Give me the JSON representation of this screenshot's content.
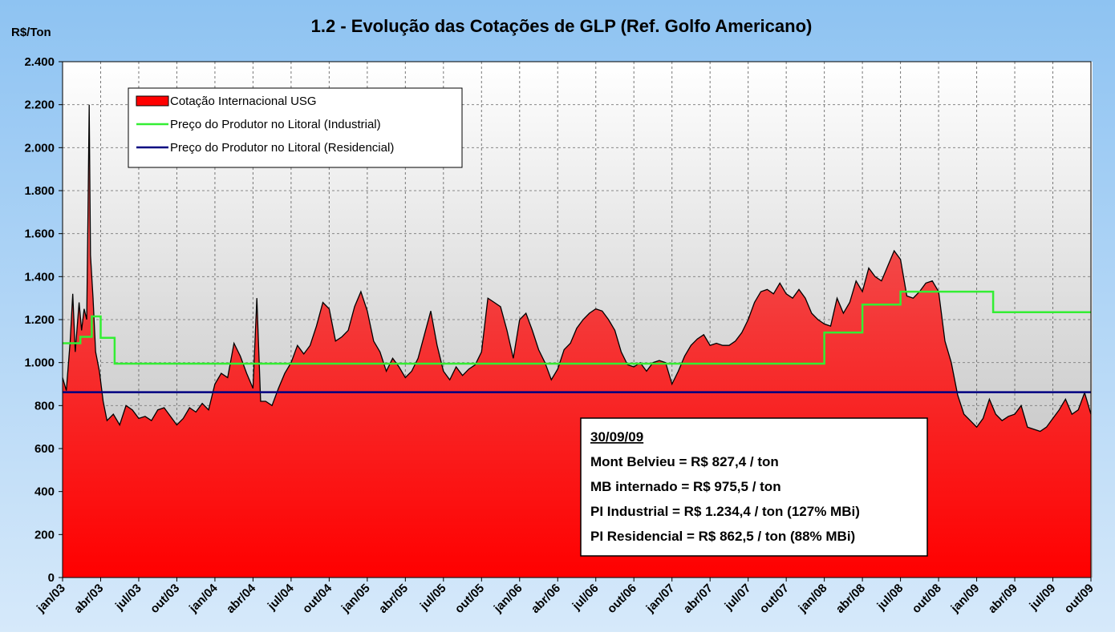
{
  "chart_data": {
    "type": "area",
    "title": "1.2 - Evolução das Cotações de GLP (Ref. Golfo Americano)",
    "y_label": "R$/Ton",
    "xlim": [
      0,
      81
    ],
    "ylim": [
      0,
      2400
    ],
    "xticks": [
      {
        "value": 0,
        "label": "jan/03"
      },
      {
        "value": 3,
        "label": "abr/03"
      },
      {
        "value": 6,
        "label": "jul/03"
      },
      {
        "value": 9,
        "label": "out/03"
      },
      {
        "value": 12,
        "label": "jan/04"
      },
      {
        "value": 15,
        "label": "abr/04"
      },
      {
        "value": 18,
        "label": "jul/04"
      },
      {
        "value": 21,
        "label": "out/04"
      },
      {
        "value": 24,
        "label": "jan/05"
      },
      {
        "value": 27,
        "label": "abr/05"
      },
      {
        "value": 30,
        "label": "jul/05"
      },
      {
        "value": 33,
        "label": "out/05"
      },
      {
        "value": 36,
        "label": "jan/06"
      },
      {
        "value": 39,
        "label": "abr/06"
      },
      {
        "value": 42,
        "label": "jul/06"
      },
      {
        "value": 45,
        "label": "out/06"
      },
      {
        "value": 48,
        "label": "jan/07"
      },
      {
        "value": 51,
        "label": "abr/07"
      },
      {
        "value": 54,
        "label": "jul/07"
      },
      {
        "value": 57,
        "label": "out/07"
      },
      {
        "value": 60,
        "label": "jan/08"
      },
      {
        "value": 63,
        "label": "abr/08"
      },
      {
        "value": 66,
        "label": "jul/08"
      },
      {
        "value": 69,
        "label": "out/08"
      },
      {
        "value": 72,
        "label": "jan/09"
      },
      {
        "value": 75,
        "label": "abr/09"
      },
      {
        "value": 78,
        "label": "jul/09"
      },
      {
        "value": 81,
        "label": "out/09"
      }
    ],
    "yticks": [
      0,
      200,
      400,
      600,
      800,
      {
        "value": 1000,
        "label": "1.000"
      },
      {
        "value": 1200,
        "label": "1.200"
      },
      {
        "value": 1400,
        "label": "1.400"
      },
      {
        "value": 1600,
        "label": "1.600"
      },
      {
        "value": 1800,
        "label": "1.800"
      },
      {
        "value": 2000,
        "label": "2.000"
      },
      {
        "value": 2200,
        "label": "2.200"
      },
      {
        "value": 2400,
        "label": "2.400"
      }
    ],
    "grid": true,
    "legend": "upper left",
    "series": [
      {
        "name": "Cotação Internacional USG",
        "color": "#ff0000",
        "kind": "area",
        "x": [
          0,
          0.3,
          0.6,
          0.8,
          1.0,
          1.3,
          1.5,
          1.7,
          1.9,
          2.0,
          2.1,
          2.2,
          2.4,
          2.6,
          2.9,
          3.2,
          3.5,
          4.0,
          4.5,
          5,
          5.5,
          6,
          6.5,
          7,
          7.5,
          8,
          8.5,
          9,
          9.5,
          10,
          10.5,
          11,
          11.5,
          12,
          12.5,
          13,
          13.5,
          14,
          14.5,
          15,
          15.3,
          15.6,
          16,
          16.5,
          17,
          17.5,
          18,
          18.5,
          19,
          19.5,
          20,
          20.5,
          21,
          21.5,
          22,
          22.5,
          23,
          23.5,
          24,
          24.5,
          25,
          25.5,
          26,
          26.5,
          27,
          27.5,
          28,
          28.5,
          29,
          29.5,
          30,
          30.5,
          31,
          31.5,
          32,
          32.5,
          33,
          33.5,
          34,
          34.5,
          35,
          35.5,
          36,
          36.5,
          37,
          37.5,
          38,
          38.5,
          39,
          39.5,
          40,
          40.5,
          41,
          41.5,
          42,
          42.5,
          43,
          43.5,
          44,
          44.5,
          45,
          45.5,
          46,
          46.5,
          47,
          47.5,
          48,
          48.5,
          49,
          49.5,
          50,
          50.5,
          51,
          51.5,
          52,
          52.5,
          53,
          53.5,
          54,
          54.5,
          55,
          55.5,
          56,
          56.5,
          57,
          57.5,
          58,
          58.5,
          59,
          59.5,
          60,
          60.5,
          61,
          61.5,
          62,
          62.5,
          63,
          63.5,
          64,
          64.5,
          65,
          65.5,
          66,
          66.5,
          67,
          67.5,
          68,
          68.5,
          69,
          69.5,
          70,
          70.5,
          71,
          71.5,
          72,
          72.5,
          73,
          73.5,
          74,
          74.5,
          75,
          75.5,
          76,
          76.5,
          77,
          77.5,
          78,
          78.5,
          79,
          79.5,
          80,
          80.5,
          81
        ],
        "values": [
          930,
          870,
          1100,
          1320,
          1050,
          1280,
          1150,
          1250,
          1200,
          1700,
          2200,
          1500,
          1300,
          1050,
          960,
          820,
          730,
          760,
          710,
          800,
          780,
          740,
          750,
          730,
          780,
          790,
          750,
          710,
          740,
          790,
          770,
          810,
          780,
          900,
          950,
          930,
          1090,
          1030,
          950,
          880,
          1300,
          820,
          820,
          800,
          880,
          950,
          1000,
          1080,
          1040,
          1080,
          1170,
          1280,
          1250,
          1100,
          1120,
          1150,
          1260,
          1330,
          1240,
          1100,
          1050,
          960,
          1020,
          980,
          930,
          960,
          1020,
          1130,
          1240,
          1080,
          960,
          920,
          980,
          940,
          970,
          990,
          1050,
          1300,
          1280,
          1260,
          1150,
          1020,
          1200,
          1230,
          1150,
          1060,
          1000,
          920,
          970,
          1060,
          1090,
          1160,
          1200,
          1230,
          1250,
          1240,
          1200,
          1150,
          1050,
          990,
          980,
          1000,
          960,
          1000,
          1010,
          1000,
          900,
          960,
          1030,
          1080,
          1110,
          1130,
          1080,
          1090,
          1080,
          1080,
          1100,
          1140,
          1200,
          1280,
          1330,
          1340,
          1320,
          1370,
          1320,
          1300,
          1340,
          1300,
          1230,
          1200,
          1180,
          1170,
          1300,
          1230,
          1280,
          1380,
          1330,
          1440,
          1400,
          1380,
          1450,
          1520,
          1480,
          1310,
          1300,
          1330,
          1370,
          1380,
          1330,
          1100,
          1000,
          850,
          760,
          730,
          700,
          740,
          830,
          760,
          730,
          750,
          760,
          800,
          700,
          690,
          680,
          700,
          740,
          780,
          830,
          760,
          780,
          860,
          760
        ]
      },
      {
        "name": "Preço do Produtor no Litoral (Industrial)",
        "color": "#33ee33",
        "kind": "step",
        "x": [
          0,
          1.4,
          2.3,
          3.0,
          4.1,
          60,
          63,
          66,
          73.3
        ],
        "values": [
          1090,
          1120,
          1215,
          1115,
          995,
          1140,
          1270,
          1330,
          1234.4
        ]
      },
      {
        "name": "Preço do Produtor no Litoral (Residencial)",
        "color": "#000080",
        "kind": "step",
        "x": [
          0
        ],
        "values": [
          862.5
        ]
      }
    ],
    "annotation": {
      "date": "30/09/09",
      "lines": [
        "Mont Belvieu = R$ 827,4 / ton",
        "MB internado = R$ 975,5 / ton",
        "PI Industrial = R$ 1.234,4 / ton (127% MBi)",
        "PI Residencial = R$ 862,5 / ton (88% MBi)"
      ]
    }
  }
}
